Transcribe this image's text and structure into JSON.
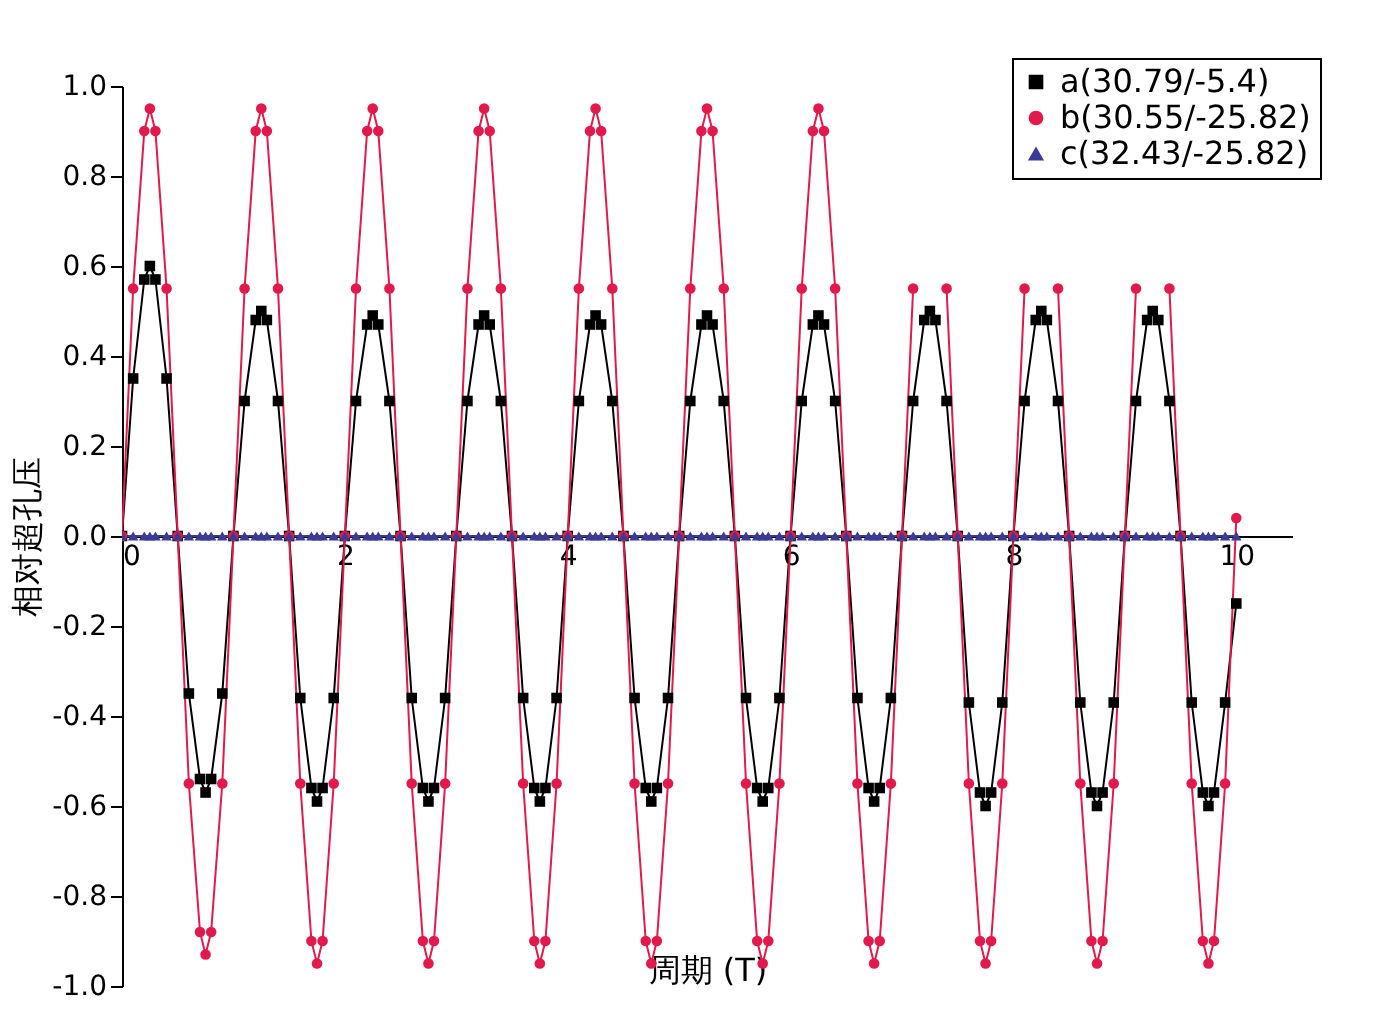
{
  "chart_data": {
    "type": "line",
    "xlabel": "周期 (T)",
    "ylabel": "相对超孔压",
    "x": [
      0,
      0.1,
      0.2,
      0.25,
      0.3,
      0.4,
      0.5,
      0.6,
      0.7,
      0.75,
      0.8,
      0.9,
      1,
      1.1,
      1.2,
      1.25,
      1.3,
      1.4,
      1.5,
      1.6,
      1.7,
      1.75,
      1.8,
      1.9,
      2,
      2.1,
      2.2,
      2.25,
      2.3,
      2.4,
      2.5,
      2.6,
      2.7,
      2.75,
      2.8,
      2.9,
      3,
      3.1,
      3.2,
      3.25,
      3.3,
      3.4,
      3.5,
      3.6,
      3.7,
      3.75,
      3.8,
      3.9,
      4,
      4.1,
      4.2,
      4.25,
      4.3,
      4.4,
      4.5,
      4.6,
      4.7,
      4.75,
      4.8,
      4.9,
      5,
      5.1,
      5.2,
      5.25,
      5.3,
      5.4,
      5.5,
      5.6,
      5.7,
      5.75,
      5.8,
      5.9,
      6,
      6.1,
      6.2,
      6.25,
      6.3,
      6.4,
      6.5,
      6.6,
      6.7,
      6.75,
      6.8,
      6.9,
      7,
      7.1,
      7.2,
      7.25,
      7.3,
      7.4,
      7.5,
      7.6,
      7.7,
      7.75,
      7.8,
      7.9,
      8,
      8.1,
      8.2,
      8.25,
      8.3,
      8.4,
      8.5,
      8.6,
      8.7,
      8.75,
      8.8,
      8.9,
      9,
      9.1,
      9.2,
      9.25,
      9.3,
      9.4,
      9.5,
      9.6,
      9.7,
      9.75,
      9.8,
      9.9,
      10
    ],
    "series": [
      {
        "name": "a(30.79/-5.4)",
        "color": "#000000",
        "marker": "square",
        "values": [
          0,
          0.35,
          0.57,
          0.6,
          0.57,
          0.35,
          0,
          -0.35,
          -0.54,
          -0.57,
          -0.54,
          -0.35,
          0,
          0.3,
          0.48,
          0.5,
          0.48,
          0.3,
          0,
          -0.36,
          -0.56,
          -0.59,
          -0.56,
          -0.36,
          0,
          0.3,
          0.47,
          0.49,
          0.47,
          0.3,
          0,
          -0.36,
          -0.56,
          -0.59,
          -0.56,
          -0.36,
          0,
          0.3,
          0.47,
          0.49,
          0.47,
          0.3,
          0,
          -0.36,
          -0.56,
          -0.59,
          -0.56,
          -0.36,
          0,
          0.3,
          0.47,
          0.49,
          0.47,
          0.3,
          0,
          -0.36,
          -0.56,
          -0.59,
          -0.56,
          -0.36,
          0,
          0.3,
          0.47,
          0.49,
          0.47,
          0.3,
          0,
          -0.36,
          -0.56,
          -0.59,
          -0.56,
          -0.36,
          0,
          0.3,
          0.47,
          0.49,
          0.47,
          0.3,
          0,
          -0.36,
          -0.56,
          -0.59,
          -0.56,
          -0.36,
          0,
          0.3,
          0.48,
          0.5,
          0.48,
          0.3,
          0,
          -0.37,
          -0.57,
          -0.6,
          -0.57,
          -0.37,
          0,
          0.3,
          0.48,
          0.5,
          0.48,
          0.3,
          0,
          -0.37,
          -0.57,
          -0.6,
          -0.57,
          -0.37,
          0,
          0.3,
          0.48,
          0.5,
          0.48,
          0.3,
          0,
          -0.37,
          -0.57,
          -0.6,
          -0.57,
          -0.37,
          -0.15
        ]
      },
      {
        "name": "b(30.55/-25.82)",
        "color": "#e3194b",
        "marker": "circle",
        "values": [
          0,
          0.55,
          0.9,
          0.95,
          0.9,
          0.55,
          0,
          -0.55,
          -0.88,
          -0.93,
          -0.88,
          -0.55,
          0,
          0.55,
          0.9,
          0.95,
          0.9,
          0.55,
          0,
          -0.55,
          -0.9,
          -0.95,
          -0.9,
          -0.55,
          0,
          0.55,
          0.9,
          0.95,
          0.9,
          0.55,
          0,
          -0.55,
          -0.9,
          -0.95,
          -0.9,
          -0.55,
          0,
          0.55,
          0.9,
          0.95,
          0.9,
          0.55,
          0,
          -0.55,
          -0.9,
          -0.95,
          -0.9,
          -0.55,
          0,
          0.55,
          0.9,
          0.95,
          0.9,
          0.55,
          0,
          -0.55,
          -0.9,
          -0.95,
          -0.9,
          -0.55,
          0,
          0.55,
          0.9,
          0.95,
          0.9,
          0.55,
          0,
          -0.55,
          -0.9,
          -0.95,
          -0.9,
          -0.55,
          0,
          0.55,
          0.9,
          0.95,
          0.9,
          0.55,
          0,
          -0.55,
          -0.9,
          -0.95,
          -0.9,
          -0.55,
          0,
          0.55,
          null,
          null,
          null,
          0.55,
          0,
          -0.55,
          -0.9,
          -0.95,
          -0.9,
          -0.55,
          0,
          0.55,
          null,
          null,
          null,
          0.55,
          0,
          -0.55,
          -0.9,
          -0.95,
          -0.9,
          -0.55,
          0,
          0.55,
          null,
          null,
          null,
          0.55,
          0,
          -0.55,
          -0.9,
          -0.95,
          -0.9,
          -0.55,
          0.04
        ]
      },
      {
        "name": "c(32.43/-25.82)",
        "color": "#3b3b96",
        "marker": "triangle",
        "values": [
          0,
          0,
          0,
          0,
          0,
          0,
          0,
          0,
          0,
          0,
          0,
          0,
          0,
          0,
          0,
          0,
          0,
          0,
          0,
          0,
          0,
          0,
          0,
          0,
          0,
          0,
          0,
          0,
          0,
          0,
          0,
          0,
          0,
          0,
          0,
          0,
          0,
          0,
          0,
          0,
          0,
          0,
          0,
          0,
          0,
          0,
          0,
          0,
          0,
          0,
          0,
          0,
          0,
          0,
          0,
          0,
          0,
          0,
          0,
          0,
          0,
          0,
          0,
          0,
          0,
          0,
          0,
          0,
          0,
          0,
          0,
          0,
          0,
          0,
          0,
          0,
          0,
          0,
          0,
          0,
          0,
          0,
          0,
          0,
          0,
          0,
          0,
          0,
          0,
          0,
          0,
          0,
          0,
          0,
          0,
          0,
          0,
          0,
          0,
          0,
          0,
          0,
          0,
          0,
          0,
          0,
          0,
          0,
          0,
          0,
          0,
          0,
          0,
          0,
          0,
          0,
          0,
          0,
          0,
          0,
          0
        ]
      }
    ],
    "xlim": [
      0,
      10.5
    ],
    "xticks": [
      {
        "value": 0,
        "label": "0"
      },
      {
        "value": 2,
        "label": "2"
      },
      {
        "value": 4,
        "label": "4"
      },
      {
        "value": 6,
        "label": "6"
      },
      {
        "value": 8,
        "label": "8"
      },
      {
        "value": 10,
        "label": "10"
      }
    ],
    "ylim": [
      -1,
      1
    ],
    "yticks": [
      {
        "value": -1,
        "label": "-1.0"
      },
      {
        "value": -0.8,
        "label": "-0.8"
      },
      {
        "value": -0.6,
        "label": "-0.6"
      },
      {
        "value": -0.4,
        "label": "-0.4"
      },
      {
        "value": -0.2,
        "label": "-0.2"
      },
      {
        "value": 0,
        "label": "0.0"
      },
      {
        "value": 0.2,
        "label": "0.2"
      },
      {
        "value": 0.4,
        "label": "0.4"
      },
      {
        "value": 0.6,
        "label": "0.6"
      },
      {
        "value": 0.8,
        "label": "0.8"
      },
      {
        "value": 1,
        "label": "1.0"
      }
    ],
    "grid": false,
    "legend": "top right",
    "line_style": "solid"
  }
}
